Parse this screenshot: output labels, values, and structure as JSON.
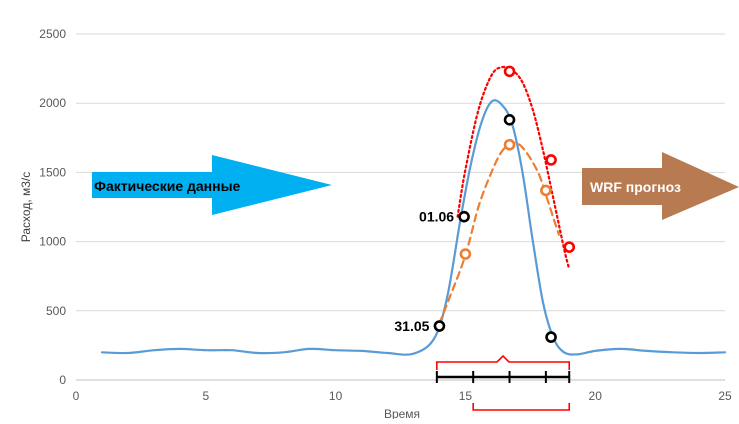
{
  "chart_data": {
    "type": "line",
    "xlabel": "Время",
    "ylabel": "Расход, м3/с",
    "xlim": [
      0,
      25
    ],
    "ylim": [
      0,
      2500
    ],
    "x_ticks": [
      0,
      5,
      10,
      15,
      20,
      25
    ],
    "y_ticks": [
      0,
      500,
      1000,
      1500,
      2000,
      2500
    ],
    "grid": "horizontal",
    "legend": "none",
    "series": [
      {
        "style": "solid",
        "color": "#5b9bd5",
        "x": [
          1,
          2,
          3,
          4,
          5,
          6,
          7,
          8,
          9,
          10,
          11,
          12,
          13,
          13.8,
          14.3,
          14.8,
          15.2,
          15.6,
          16.0,
          16.4,
          16.8,
          17.2,
          17.6,
          18.0,
          18.4,
          18.8,
          19.3,
          20,
          21,
          22,
          23,
          24,
          25
        ],
        "y": [
          200,
          195,
          215,
          225,
          215,
          215,
          195,
          200,
          225,
          215,
          210,
          195,
          190,
          300,
          600,
          1150,
          1550,
          1850,
          2010,
          1990,
          1850,
          1500,
          1000,
          550,
          300,
          200,
          185,
          210,
          225,
          210,
          200,
          195,
          200
        ]
      },
      {
        "style": "dashed",
        "color": "#ed7d31",
        "x": [
          14.0,
          14.4,
          15.0,
          15.5,
          16.0,
          16.4,
          16.8,
          17.2,
          17.8,
          18.2,
          18.6
        ],
        "y": [
          410,
          600,
          900,
          1250,
          1500,
          1650,
          1710,
          1680,
          1500,
          1280,
          1050
        ]
      },
      {
        "style": "dotted",
        "color": "#ff0000",
        "x": [
          14.7,
          15.0,
          15.5,
          16.0,
          16.4,
          16.8,
          17.2,
          17.6,
          18.0,
          18.4,
          18.8,
          19.0
        ],
        "y": [
          1180,
          1520,
          1950,
          2200,
          2260,
          2240,
          2150,
          1950,
          1650,
          1300,
          950,
          800
        ]
      }
    ],
    "markers": [
      {
        "color": "#000000",
        "points": [
          {
            "x": 14.0,
            "y": 390
          },
          {
            "x": 14.95,
            "y": 1180
          },
          {
            "x": 16.7,
            "y": 1880
          },
          {
            "x": 18.3,
            "y": 310
          }
        ]
      },
      {
        "color": "#ed7d31",
        "points": [
          {
            "x": 15.0,
            "y": 910
          },
          {
            "x": 16.7,
            "y": 1700
          },
          {
            "x": 18.1,
            "y": 1370
          }
        ]
      },
      {
        "color": "#ff0000",
        "points": [
          {
            "x": 16.7,
            "y": 2230
          },
          {
            "x": 18.3,
            "y": 1590
          },
          {
            "x": 19.0,
            "y": 960
          }
        ]
      }
    ],
    "annotations": [
      {
        "text": "31.05",
        "x": 14.0,
        "y": 390
      },
      {
        "text": "01.06",
        "x": 14.95,
        "y": 1180
      }
    ],
    "arrows": [
      {
        "text": "Фактические данные",
        "color": "#00b0f0"
      },
      {
        "text": "WRF прогноз",
        "color": "#b87a50"
      }
    ],
    "brackets": {
      "red": {
        "from_x": 13.9,
        "to_x": 19.0,
        "color": "#ff0000"
      },
      "black": {
        "x": [
          13.9,
          15.3,
          16.7,
          18.1,
          19.0
        ],
        "color": "#000000"
      }
    }
  }
}
